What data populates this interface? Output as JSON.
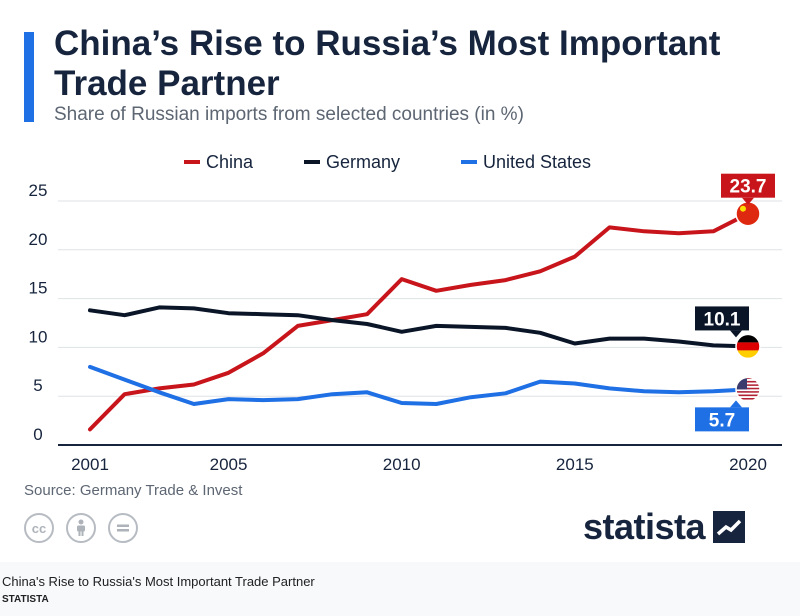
{
  "header": {
    "title": "China’s Rise to Russia’s Most Important Trade Partner",
    "subtitle": "Share of Russian imports from selected countries (in %)"
  },
  "chart_data": {
    "type": "line",
    "title": "China’s Rise to Russia’s Most Important Trade Partner",
    "subtitle": "Share of Russian imports from selected countries (in %)",
    "xlabel": "",
    "ylabel": "",
    "x": [
      2001,
      2002,
      2003,
      2004,
      2005,
      2006,
      2007,
      2008,
      2009,
      2010,
      2011,
      2012,
      2013,
      2014,
      2015,
      2016,
      2017,
      2018,
      2019,
      2020
    ],
    "xticks": [
      2001,
      2005,
      2010,
      2015,
      2020
    ],
    "yticks": [
      0,
      5,
      10,
      15,
      20,
      25
    ],
    "xlim": [
      2001,
      2020
    ],
    "ylim": [
      0,
      25
    ],
    "grid": true,
    "legend_position": "top",
    "series": [
      {
        "name": "China",
        "color": "#c8151b",
        "values": [
          1.6,
          5.2,
          5.8,
          6.2,
          7.4,
          9.4,
          12.2,
          12.8,
          13.4,
          17.0,
          15.8,
          16.4,
          16.9,
          17.8,
          19.3,
          22.3,
          21.9,
          21.7,
          21.9,
          23.7
        ],
        "end_label": "23.7"
      },
      {
        "name": "Germany",
        "color": "#0a1628",
        "values": [
          13.8,
          13.3,
          14.1,
          14.0,
          13.5,
          13.4,
          13.3,
          12.8,
          12.4,
          11.6,
          12.2,
          12.1,
          12.0,
          11.5,
          10.4,
          10.9,
          10.9,
          10.6,
          10.2,
          10.1
        ],
        "end_label": "10.1"
      },
      {
        "name": "United States",
        "color": "#1f6fe5",
        "values": [
          8.0,
          6.7,
          5.4,
          4.2,
          4.7,
          4.6,
          4.7,
          5.2,
          5.4,
          4.3,
          4.2,
          4.9,
          5.3,
          6.5,
          6.3,
          5.8,
          5.5,
          5.4,
          5.5,
          5.7
        ],
        "end_label": "5.7"
      }
    ]
  },
  "footer": {
    "source": "Source: Germany Trade & Invest",
    "license_icons": [
      "cc",
      "attribution",
      "no-derivatives"
    ],
    "brand": "statista"
  },
  "caption": {
    "title": "China's Rise to Russia's Most Important Trade Partner",
    "source": "STATISTA"
  }
}
